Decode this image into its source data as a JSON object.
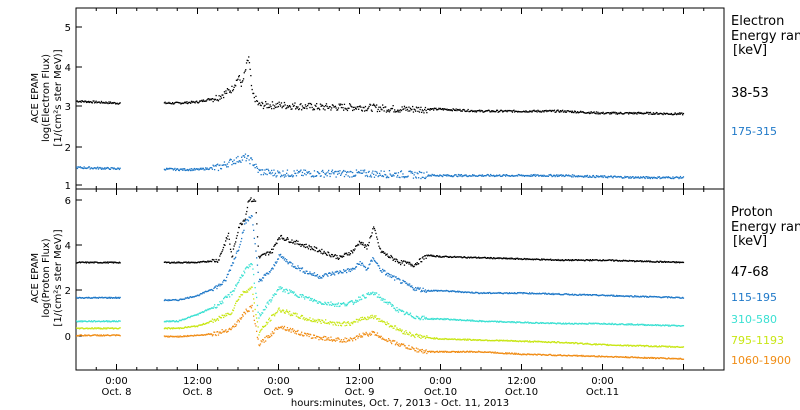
{
  "chart_data": {
    "type": "scatter",
    "xlabel": "hours:minutes, Oct. 7, 2013 - Oct. 11, 2013",
    "x_range_hours": [
      -6,
      90
    ],
    "x_ticks": [
      {
        "time": "0:00",
        "date": "Oct. 8"
      },
      {
        "time": "12:00",
        "date": "Oct. 8"
      },
      {
        "time": "0:00",
        "date": "Oct. 9"
      },
      {
        "time": "12:00",
        "date": "Oct. 9"
      },
      {
        "time": "0:00",
        "date": "Oct.10"
      },
      {
        "time": "12:00",
        "date": "Oct.10"
      },
      {
        "time": "0:00",
        "date": "Oct.11"
      }
    ],
    "panels": [
      {
        "id": "electron",
        "ylabel": [
          "ACE EPAM",
          "log(Electron Flux)",
          "[1/(cm²s ster MeV)]"
        ],
        "ylim": [
          0.9,
          5.4
        ],
        "yticks": [
          "1",
          "2",
          "3",
          "4",
          "5"
        ],
        "legend_title": [
          "Electron",
          "Energy range",
          "[keV]"
        ],
        "series": [
          {
            "name": "38-53",
            "color": "#000000",
            "points": [
              [
                -6,
                3.1
              ],
              [
                0,
                3.05
              ],
              [
                6,
                3.05
              ],
              [
                9,
                3.05
              ],
              [
                12,
                3.08
              ],
              [
                15,
                3.2
              ],
              [
                17,
                3.4
              ],
              [
                18,
                3.7
              ],
              [
                18.5,
                3.5
              ],
              [
                19.5,
                4.2
              ],
              [
                20,
                3.3
              ],
              [
                21,
                3.0
              ],
              [
                24,
                3.0
              ],
              [
                30,
                2.95
              ],
              [
                36,
                2.95
              ],
              [
                42,
                2.9
              ],
              [
                48,
                2.9
              ],
              [
                54,
                2.85
              ],
              [
                60,
                2.85
              ],
              [
                66,
                2.85
              ],
              [
                72,
                2.8
              ],
              [
                78,
                2.8
              ],
              [
                84,
                2.78
              ]
            ]
          },
          {
            "name": "175-315",
            "color": "#1e78c8",
            "points": [
              [
                -6,
                1.45
              ],
              [
                0,
                1.42
              ],
              [
                6,
                1.42
              ],
              [
                9,
                1.4
              ],
              [
                12,
                1.4
              ],
              [
                15,
                1.45
              ],
              [
                17,
                1.6
              ],
              [
                18,
                1.65
              ],
              [
                19,
                1.7
              ],
              [
                20,
                1.6
              ],
              [
                21,
                1.35
              ],
              [
                24,
                1.3
              ],
              [
                30,
                1.3
              ],
              [
                36,
                1.3
              ],
              [
                42,
                1.28
              ],
              [
                48,
                1.25
              ],
              [
                54,
                1.25
              ],
              [
                60,
                1.25
              ],
              [
                66,
                1.25
              ],
              [
                72,
                1.22
              ],
              [
                78,
                1.2
              ],
              [
                84,
                1.2
              ]
            ]
          }
        ]
      },
      {
        "id": "proton",
        "ylabel": [
          "ACE EPAM",
          "log(Proton Flux)",
          "[1/(cm²s ster MeV)]"
        ],
        "ylim": [
          -1.3,
          6.4
        ],
        "yticks": [
          "0",
          "2",
          "4",
          "6"
        ],
        "legend_title": [
          "Proton",
          "Energy range",
          "[keV]"
        ],
        "series": [
          {
            "name": "47-68",
            "color": "#000000",
            "points": [
              [
                -6,
                3.3
              ],
              [
                0,
                3.3
              ],
              [
                6,
                3.3
              ],
              [
                9,
                3.3
              ],
              [
                12,
                3.3
              ],
              [
                15,
                3.4
              ],
              [
                16.5,
                4.5
              ],
              [
                17,
                3.5
              ],
              [
                18,
                4.8
              ],
              [
                19,
                5.2
              ],
              [
                19.5,
                6.0
              ],
              [
                20.5,
                5.9
              ],
              [
                21,
                3.5
              ],
              [
                23,
                3.8
              ],
              [
                24,
                4.4
              ],
              [
                26,
                4.2
              ],
              [
                28,
                4.0
              ],
              [
                30,
                3.8
              ],
              [
                33,
                3.5
              ],
              [
                35,
                3.8
              ],
              [
                36,
                4.2
              ],
              [
                37,
                3.9
              ],
              [
                38,
                4.8
              ],
              [
                39,
                3.8
              ],
              [
                40,
                3.6
              ],
              [
                42,
                3.3
              ],
              [
                44,
                3.2
              ],
              [
                46,
                3.6
              ],
              [
                48,
                3.55
              ],
              [
                54,
                3.5
              ],
              [
                60,
                3.45
              ],
              [
                66,
                3.4
              ],
              [
                72,
                3.4
              ],
              [
                78,
                3.35
              ],
              [
                84,
                3.3
              ]
            ]
          },
          {
            "name": "115-195",
            "color": "#1e78c8",
            "points": [
              [
                -6,
                1.8
              ],
              [
                0,
                1.8
              ],
              [
                6,
                1.7
              ],
              [
                9,
                1.7
              ],
              [
                12,
                1.9
              ],
              [
                15,
                2.3
              ],
              [
                16,
                2.5
              ],
              [
                17,
                3.2
              ],
              [
                18,
                3.9
              ],
              [
                19,
                5.0
              ],
              [
                20,
                5.3
              ],
              [
                21,
                2.5
              ],
              [
                23,
                3.0
              ],
              [
                24,
                3.6
              ],
              [
                26,
                3.2
              ],
              [
                28,
                2.9
              ],
              [
                30,
                2.7
              ],
              [
                33,
                2.9
              ],
              [
                35,
                3.0
              ],
              [
                36,
                3.3
              ],
              [
                37,
                3.0
              ],
              [
                38,
                3.5
              ],
              [
                39,
                3.0
              ],
              [
                40,
                2.8
              ],
              [
                42,
                2.5
              ],
              [
                44,
                2.2
              ],
              [
                46,
                2.1
              ],
              [
                48,
                2.1
              ],
              [
                54,
                2.0
              ],
              [
                60,
                2.0
              ],
              [
                66,
                1.95
              ],
              [
                72,
                1.9
              ],
              [
                78,
                1.85
              ],
              [
                84,
                1.8
              ]
            ]
          },
          {
            "name": "310-580",
            "color": "#3ae0d2",
            "points": [
              [
                -6,
                0.8
              ],
              [
                0,
                0.8
              ],
              [
                6,
                0.8
              ],
              [
                9,
                0.8
              ],
              [
                12,
                1.1
              ],
              [
                15,
                1.5
              ],
              [
                17,
                2.0
              ],
              [
                18,
                2.5
              ],
              [
                19,
                3.0
              ],
              [
                20,
                3.2
              ],
              [
                21,
                1.0
              ],
              [
                23,
                1.8
              ],
              [
                24,
                2.2
              ],
              [
                26,
                2.0
              ],
              [
                28,
                1.8
              ],
              [
                30,
                1.6
              ],
              [
                33,
                1.5
              ],
              [
                35,
                1.6
              ],
              [
                36,
                1.8
              ],
              [
                38,
                2.0
              ],
              [
                40,
                1.6
              ],
              [
                42,
                1.2
              ],
              [
                44,
                1.0
              ],
              [
                46,
                0.9
              ],
              [
                48,
                0.9
              ],
              [
                54,
                0.8
              ],
              [
                60,
                0.75
              ],
              [
                66,
                0.7
              ],
              [
                72,
                0.7
              ],
              [
                78,
                0.65
              ],
              [
                84,
                0.6
              ]
            ]
          },
          {
            "name": "795-1193",
            "color": "#c8e614",
            "points": [
              [
                -6,
                0.5
              ],
              [
                0,
                0.5
              ],
              [
                6,
                0.5
              ],
              [
                9,
                0.5
              ],
              [
                12,
                0.6
              ],
              [
                15,
                0.9
              ],
              [
                17,
                1.2
              ],
              [
                18,
                1.8
              ],
              [
                19,
                2.1
              ],
              [
                20,
                2.2
              ],
              [
                21,
                0.3
              ],
              [
                23,
                1.0
              ],
              [
                24,
                1.3
              ],
              [
                26,
                1.1
              ],
              [
                28,
                0.9
              ],
              [
                30,
                0.8
              ],
              [
                33,
                0.7
              ],
              [
                35,
                0.7
              ],
              [
                36,
                0.9
              ],
              [
                38,
                1.0
              ],
              [
                40,
                0.7
              ],
              [
                42,
                0.4
              ],
              [
                44,
                0.2
              ],
              [
                46,
                0.1
              ],
              [
                48,
                0.05
              ],
              [
                54,
                0.0
              ],
              [
                60,
                -0.05
              ],
              [
                66,
                -0.1
              ],
              [
                72,
                -0.2
              ],
              [
                78,
                -0.25
              ],
              [
                84,
                -0.3
              ]
            ]
          },
          {
            "name": "1060-1900",
            "color": "#f08c14",
            "points": [
              [
                -6,
                0.2
              ],
              [
                0,
                0.2
              ],
              [
                6,
                0.15
              ],
              [
                9,
                0.15
              ],
              [
                12,
                0.2
              ],
              [
                15,
                0.3
              ],
              [
                17,
                0.5
              ],
              [
                18,
                0.8
              ],
              [
                19,
                1.2
              ],
              [
                20,
                1.4
              ],
              [
                21,
                -0.2
              ],
              [
                23,
                0.3
              ],
              [
                24,
                0.6
              ],
              [
                26,
                0.4
              ],
              [
                28,
                0.2
              ],
              [
                30,
                0.1
              ],
              [
                33,
                0.0
              ],
              [
                35,
                0.0
              ],
              [
                36,
                0.2
              ],
              [
                38,
                0.3
              ],
              [
                40,
                0.0
              ],
              [
                42,
                -0.2
              ],
              [
                44,
                -0.4
              ],
              [
                46,
                -0.5
              ],
              [
                48,
                -0.5
              ],
              [
                54,
                -0.5
              ],
              [
                60,
                -0.6
              ],
              [
                66,
                -0.65
              ],
              [
                72,
                -0.7
              ],
              [
                78,
                -0.75
              ],
              [
                84,
                -0.8
              ]
            ]
          }
        ]
      }
    ]
  }
}
